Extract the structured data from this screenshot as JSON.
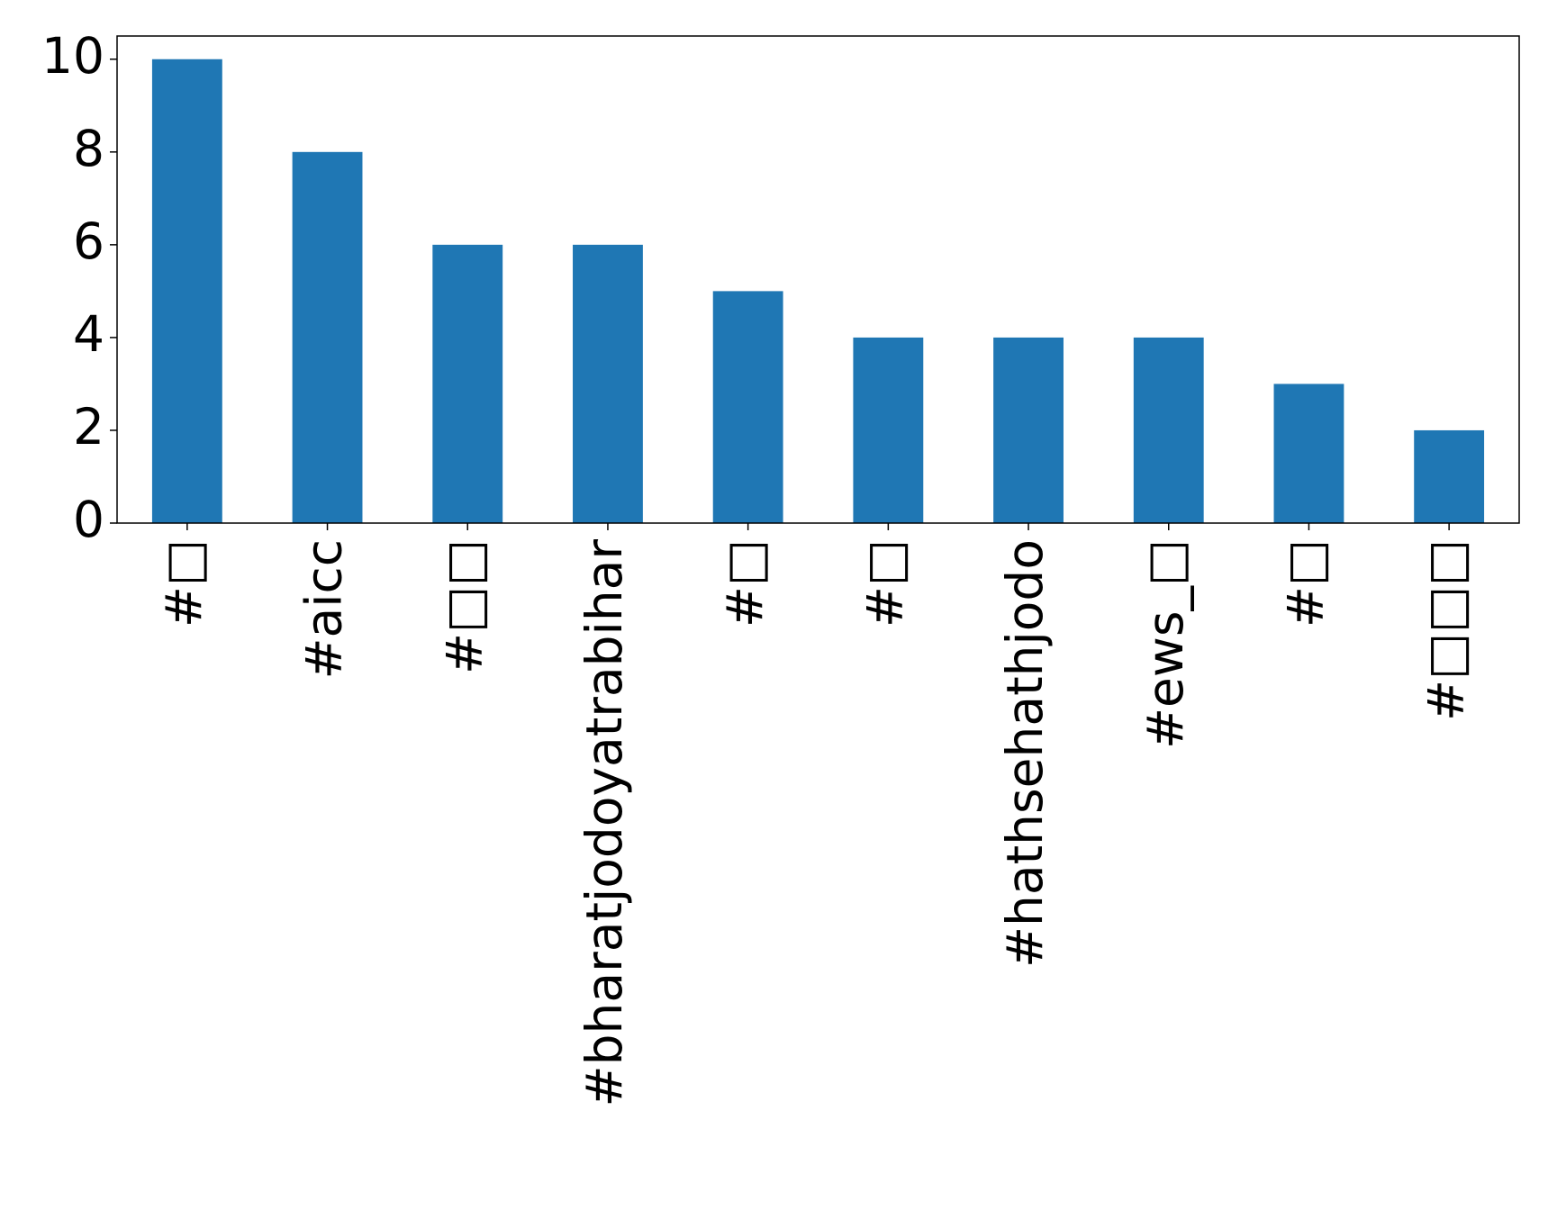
{
  "chart_data": {
    "type": "bar",
    "categories": [
      "#□",
      "#aicc",
      "#□□",
      "#bharatjodoyatrabihar",
      "#□",
      "#□",
      "#hathsehathjodo",
      "#ews_□",
      "#□",
      "#□□□"
    ],
    "values": [
      10,
      8,
      6,
      6,
      5,
      4,
      4,
      4,
      3,
      2
    ],
    "color": "#1f77b4",
    "ylim": [
      0,
      10.5
    ],
    "yticks": [
      0,
      2,
      4,
      6,
      8,
      10
    ],
    "grid": false
  }
}
